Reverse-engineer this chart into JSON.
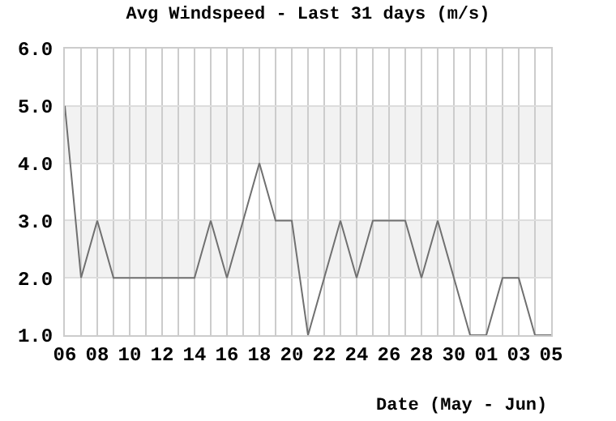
{
  "chart_data": {
    "type": "line",
    "title": "Avg Windspeed - Last 31 days (m/s)",
    "xlabel": "Date (May - Jun)",
    "categories": [
      "06",
      null,
      "08",
      null,
      "10",
      null,
      "12",
      null,
      "14",
      null,
      "16",
      null,
      "18",
      null,
      "20",
      null,
      "22",
      null,
      "24",
      null,
      "26",
      null,
      "28",
      null,
      "30",
      null,
      "01",
      null,
      "03",
      null,
      "05"
    ],
    "series": [
      {
        "color": "#707070",
        "values": [
          5,
          2,
          3,
          2,
          2,
          2,
          2,
          2,
          2,
          3,
          2,
          3,
          4,
          3,
          3,
          1,
          2,
          3,
          2,
          3,
          3,
          3,
          2,
          3,
          2,
          1,
          1,
          2,
          2,
          1,
          1
        ]
      }
    ],
    "ylim": [
      1,
      6
    ],
    "yticks": [
      {
        "value": 1,
        "label": "1.0"
      },
      {
        "value": 2,
        "label": "2.0"
      },
      {
        "value": 3,
        "label": "3.0"
      },
      {
        "value": 4,
        "label": "4.0"
      },
      {
        "value": 5,
        "label": "5.0"
      },
      {
        "value": 6,
        "label": "6.0"
      }
    ],
    "bands": [
      {
        "axis": "y",
        "from": 2,
        "to": 3,
        "color": "#f2f2f2"
      },
      {
        "axis": "y",
        "from": 4,
        "to": 5,
        "color": "#f2f2f2"
      }
    ],
    "grid": true,
    "marker": "none",
    "line_style": "solid"
  }
}
